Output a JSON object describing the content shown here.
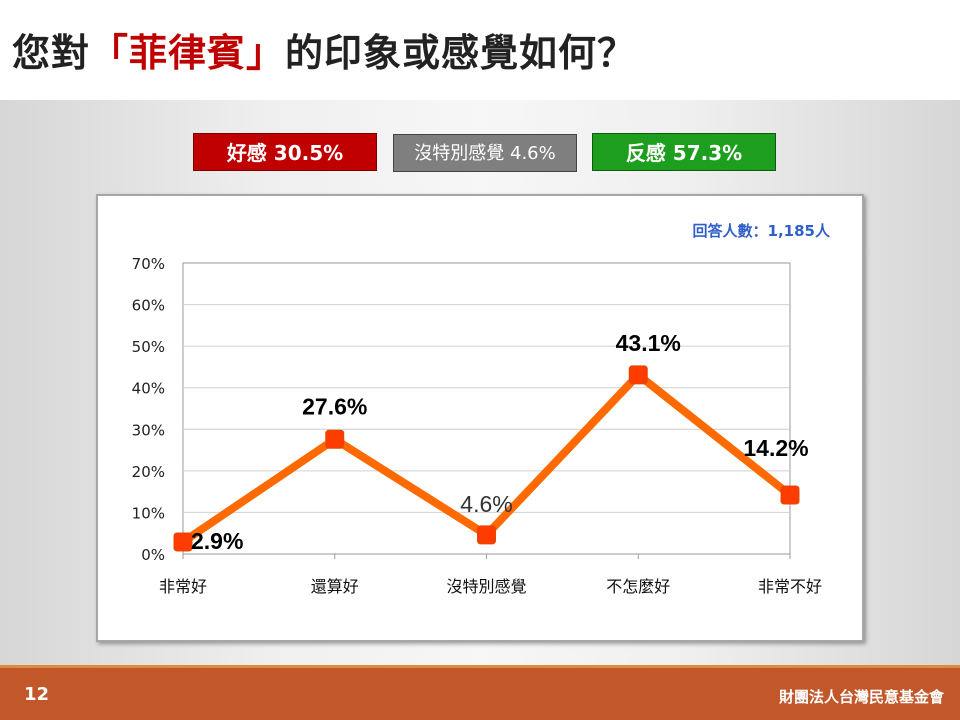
{
  "title": {
    "prefix": "您對",
    "highlight": "「菲律賓」",
    "suffix": "的印象或感覺如何？"
  },
  "summary": {
    "favorable": "好感 30.5%",
    "neutral": "沒特別感覺 4.6%",
    "unfavorable": "反感 57.3%"
  },
  "respondents": "回答人數：1,185人",
  "footer": {
    "page_number": "12",
    "organization": "財團法人台灣民意基金會"
  },
  "colors": {
    "line": "#ff6a00",
    "marker": "#ff3c00",
    "favorable": "#c00000",
    "neutral": "#7f7f7f",
    "unfavorable": "#1e9e1e",
    "footer": "#c2572a"
  },
  "chart_data": {
    "type": "line",
    "categories": [
      "非常好",
      "還算好",
      "沒特別感覺",
      "不怎麼好",
      "非常不好"
    ],
    "series": [
      {
        "values": [
          2.9,
          27.6,
          4.6,
          43.1,
          14.2
        ],
        "labels": [
          "2.9%",
          "27.6%",
          "4.6%",
          "43.1%",
          "14.2%"
        ]
      }
    ],
    "yticks": [
      "0%",
      "10%",
      "20%",
      "30%",
      "40%",
      "50%",
      "60%",
      "70%"
    ],
    "ylim": [
      0,
      70
    ],
    "grid": true,
    "legend": "none"
  }
}
